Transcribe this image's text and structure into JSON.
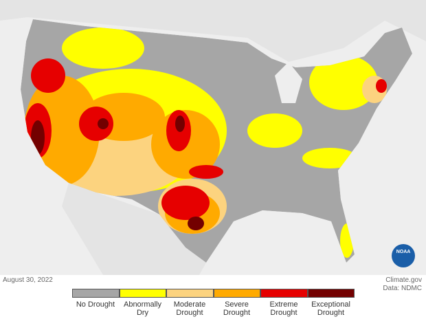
{
  "map": {
    "date": "August 30, 2022",
    "source": "Climate.gov",
    "data_credit": "Data: NDMC",
    "logo_text": "NOAA"
  },
  "legend": {
    "items": [
      {
        "label": "No Drought",
        "color": "#a6a6a6"
      },
      {
        "label": "Abnormally Dry",
        "color": "#ffff00"
      },
      {
        "label": "Moderate Drought",
        "color": "#fcd37f"
      },
      {
        "label": "Severe Drought",
        "color": "#ffaa00"
      },
      {
        "label": "Extreme Drought",
        "color": "#e60000"
      },
      {
        "label": "Exceptional Drought",
        "color": "#730000"
      }
    ]
  }
}
